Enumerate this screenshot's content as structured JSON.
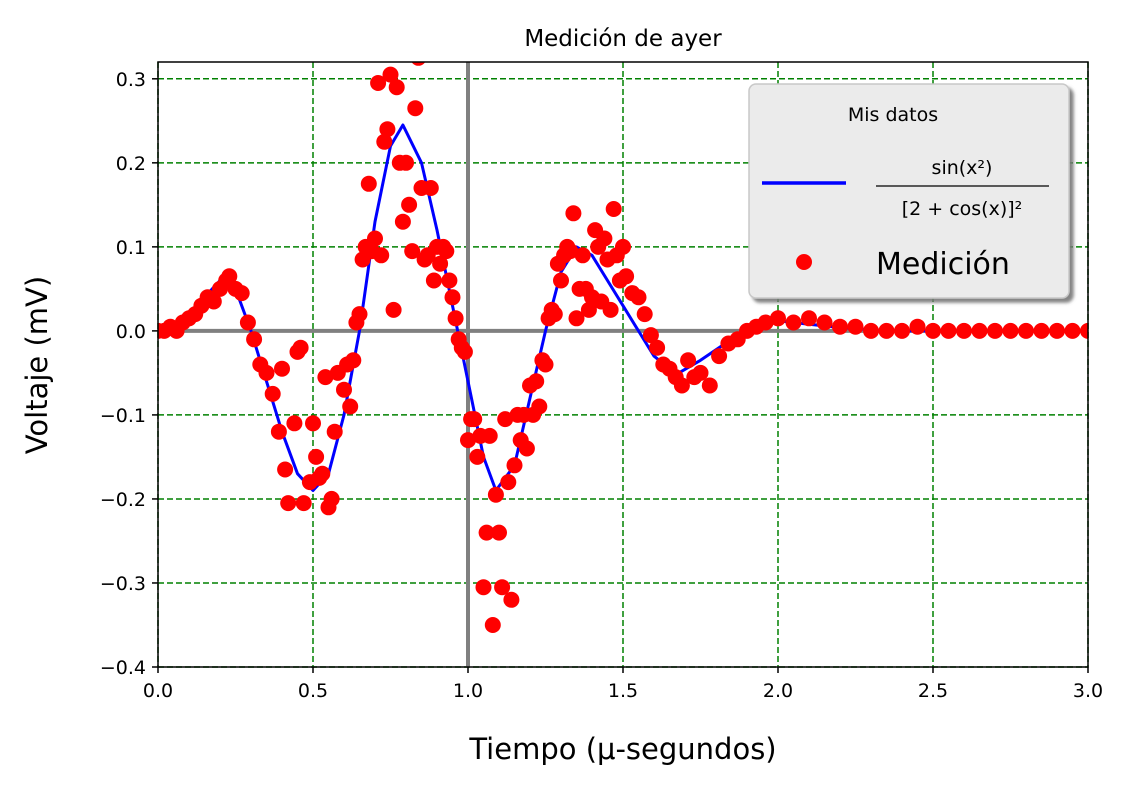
{
  "chart_data": {
    "type": "line",
    "title": "Medición de ayer",
    "xlabel": "Tiempo (μ-segundos)",
    "ylabel": "Voltaje (mV)",
    "xlim": [
      0.0,
      3.0
    ],
    "ylim": [
      -0.4,
      0.32
    ],
    "x_ticks": [
      0.0,
      0.5,
      1.0,
      1.5,
      2.0,
      2.5,
      3.0
    ],
    "x_tick_labels": [
      "0.0",
      "0.5",
      "1.0",
      "1.5",
      "2.0",
      "2.5",
      "3.0"
    ],
    "y_ticks": [
      0.3,
      0.2,
      0.1,
      0.0,
      -0.1,
      -0.2,
      -0.3,
      -0.4
    ],
    "y_tick_labels": [
      "0.3",
      "0.2",
      "0.1",
      "0.0",
      "−0.1",
      "−0.2",
      "−0.3",
      "−0.4"
    ],
    "grid": true,
    "grid_color": "#008000",
    "grid_style": "dashed",
    "reference_lines": {
      "x": 1.0,
      "y": 0.0,
      "color": "#808080"
    },
    "legend": {
      "placement": "top-right",
      "title": "Mis datos",
      "entries": [
        {
          "label": "sin(x²) / [2 + cos(x)]²",
          "numerator": "sin(x²)",
          "denominator": "[2 + cos(x)]²",
          "marker": "line",
          "color": "#0000ff"
        },
        {
          "label": "Medición",
          "marker": "circle",
          "color": "#ff0000"
        }
      ]
    },
    "series": [
      {
        "name": "sin(x²) / [2 + cos(x)]²",
        "kind": "line",
        "color": "#0000ff",
        "x": [
          0.0,
          0.05,
          0.1,
          0.15,
          0.2,
          0.22,
          0.25,
          0.3,
          0.35,
          0.4,
          0.45,
          0.5,
          0.55,
          0.6,
          0.65,
          0.7,
          0.75,
          0.79,
          0.85,
          0.9,
          0.95,
          1.0,
          1.05,
          1.09,
          1.15,
          1.2,
          1.25,
          1.3,
          1.35,
          1.4,
          1.45,
          1.5,
          1.55,
          1.6,
          1.65,
          1.68,
          1.75,
          1.85,
          1.95,
          2.0,
          2.1,
          2.2,
          2.35,
          2.5,
          2.75,
          3.0
        ],
        "y": [
          0.0,
          0.005,
          0.02,
          0.04,
          0.06,
          0.065,
          0.05,
          0.0,
          -0.06,
          -0.12,
          -0.17,
          -0.19,
          -0.17,
          -0.1,
          0.0,
          0.13,
          0.22,
          0.245,
          0.2,
          0.12,
          0.03,
          -0.06,
          -0.15,
          -0.19,
          -0.16,
          -0.08,
          0.0,
          0.07,
          0.1,
          0.09,
          0.06,
          0.03,
          0.0,
          -0.03,
          -0.045,
          -0.05,
          -0.035,
          -0.01,
          0.01,
          0.012,
          0.008,
          0.004,
          0.0,
          0.0,
          0.0,
          0.0
        ]
      },
      {
        "name": "Medición",
        "kind": "scatter",
        "color": "#ff0000",
        "x": [
          0.0,
          0.02,
          0.04,
          0.06,
          0.08,
          0.1,
          0.12,
          0.14,
          0.16,
          0.18,
          0.2,
          0.22,
          0.23,
          0.25,
          0.27,
          0.29,
          0.31,
          0.33,
          0.35,
          0.37,
          0.39,
          0.4,
          0.41,
          0.42,
          0.44,
          0.45,
          0.46,
          0.47,
          0.49,
          0.5,
          0.51,
          0.52,
          0.53,
          0.54,
          0.55,
          0.56,
          0.57,
          0.58,
          0.6,
          0.61,
          0.62,
          0.63,
          0.64,
          0.65,
          0.66,
          0.67,
          0.68,
          0.69,
          0.7,
          0.71,
          0.72,
          0.73,
          0.74,
          0.75,
          0.76,
          0.77,
          0.78,
          0.79,
          0.8,
          0.81,
          0.82,
          0.83,
          0.84,
          0.85,
          0.86,
          0.87,
          0.88,
          0.89,
          0.9,
          0.91,
          0.92,
          0.93,
          0.94,
          0.95,
          0.96,
          0.97,
          0.98,
          0.99,
          1.0,
          1.01,
          1.02,
          1.03,
          1.04,
          1.05,
          1.06,
          1.07,
          1.08,
          1.09,
          1.1,
          1.11,
          1.12,
          1.13,
          1.14,
          1.15,
          1.16,
          1.17,
          1.18,
          1.19,
          1.2,
          1.21,
          1.22,
          1.23,
          1.24,
          1.25,
          1.26,
          1.27,
          1.28,
          1.29,
          1.3,
          1.31,
          1.32,
          1.33,
          1.34,
          1.35,
          1.36,
          1.37,
          1.38,
          1.39,
          1.4,
          1.41,
          1.42,
          1.43,
          1.44,
          1.45,
          1.46,
          1.47,
          1.48,
          1.49,
          1.5,
          1.51,
          1.53,
          1.55,
          1.57,
          1.59,
          1.61,
          1.63,
          1.65,
          1.67,
          1.69,
          1.71,
          1.73,
          1.75,
          1.78,
          1.81,
          1.84,
          1.87,
          1.9,
          1.93,
          1.96,
          2.0,
          2.05,
          2.1,
          2.15,
          2.2,
          2.25,
          2.3,
          2.35,
          2.4,
          2.45,
          2.5,
          2.55,
          2.6,
          2.65,
          2.7,
          2.75,
          2.8,
          2.85,
          2.9,
          2.95,
          3.0
        ],
        "y": [
          0.0,
          0.0,
          0.005,
          0.0,
          0.01,
          0.015,
          0.02,
          0.03,
          0.04,
          0.035,
          0.05,
          0.06,
          0.065,
          0.05,
          0.045,
          0.01,
          -0.01,
          -0.04,
          -0.05,
          -0.075,
          -0.12,
          -0.045,
          -0.165,
          -0.205,
          -0.11,
          -0.025,
          -0.02,
          -0.205,
          -0.18,
          -0.11,
          -0.15,
          -0.175,
          -0.17,
          -0.055,
          -0.21,
          -0.2,
          -0.12,
          -0.05,
          -0.07,
          -0.04,
          -0.09,
          -0.035,
          0.01,
          0.02,
          0.085,
          0.1,
          0.175,
          0.095,
          0.11,
          0.295,
          0.09,
          0.225,
          0.24,
          0.305,
          0.025,
          0.29,
          0.2,
          0.13,
          0.2,
          0.15,
          0.095,
          0.265,
          0.325,
          0.17,
          0.085,
          0.09,
          0.17,
          0.06,
          0.1,
          0.08,
          0.1,
          0.095,
          0.06,
          0.04,
          0.015,
          -0.01,
          -0.02,
          -0.025,
          -0.13,
          -0.105,
          -0.105,
          -0.15,
          -0.125,
          -0.305,
          -0.24,
          -0.125,
          -0.35,
          -0.195,
          -0.24,
          -0.305,
          -0.105,
          -0.18,
          -0.32,
          -0.16,
          -0.1,
          -0.13,
          -0.1,
          -0.14,
          -0.065,
          -0.1,
          -0.06,
          -0.09,
          -0.035,
          -0.04,
          0.015,
          0.025,
          0.02,
          0.08,
          0.06,
          0.09,
          0.1,
          0.095,
          0.14,
          0.015,
          0.05,
          0.09,
          0.05,
          0.025,
          0.04,
          0.12,
          0.1,
          0.035,
          0.11,
          0.085,
          0.025,
          0.145,
          0.09,
          0.06,
          0.1,
          0.065,
          0.045,
          0.04,
          0.02,
          -0.005,
          -0.02,
          -0.04,
          -0.045,
          -0.055,
          -0.065,
          -0.035,
          -0.055,
          -0.05,
          -0.065,
          -0.03,
          -0.015,
          -0.01,
          0.0,
          0.005,
          0.01,
          0.015,
          0.01,
          0.015,
          0.01,
          0.005,
          0.005,
          0.0,
          0.0,
          0.0,
          0.005,
          0.0,
          0.0,
          0.0,
          0.0,
          0.0,
          0.0,
          0.0,
          0.0,
          0.0,
          0.0,
          0.0
        ]
      }
    ]
  }
}
